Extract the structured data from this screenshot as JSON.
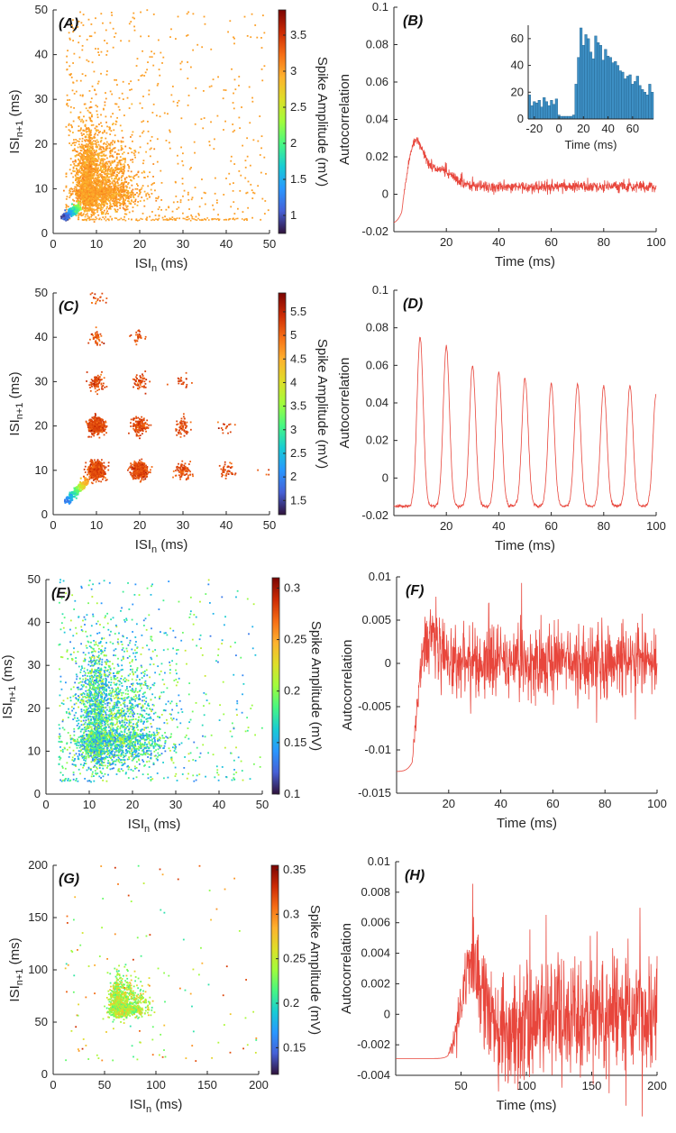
{
  "chart_data": [
    {
      "panel": "(A)",
      "type": "scatter",
      "xlabel_main": "ISI",
      "xlabel_sub": "n",
      "xlabel_unit": " (ms)",
      "ylabel_main": "ISI",
      "ylabel_sub": "n+1",
      "ylabel_unit": " (ms)",
      "xlim": [
        0,
        50
      ],
      "ylim": [
        0,
        50
      ],
      "xticks": [
        0,
        10,
        20,
        30,
        40,
        50
      ],
      "yticks": [
        0,
        10,
        20,
        30,
        40,
        50
      ],
      "colorbar": {
        "label": "Spike Amplitude (mV)",
        "range": [
          0.75,
          3.85
        ],
        "ticks": [
          "1",
          "1.5",
          "2",
          "2.5",
          "3",
          "3.5"
        ],
        "tick_values": [
          1,
          1.5,
          2,
          2.5,
          3,
          3.5
        ]
      },
      "cluster": {
        "center": [
          9,
          10
        ],
        "spread": [
          4,
          5
        ],
        "count": 2800,
        "amplitude": 3.0
      },
      "sparse": {
        "count": 600,
        "amplitude": 3.0
      },
      "low_amp_tail": {
        "start": [
          2.5,
          3.5
        ],
        "end": [
          6,
          6
        ],
        "amplitude_range": [
          0.9,
          2.3
        ]
      },
      "bands": [
        {
          "y": 3.2,
          "x_range": [
            8,
            45
          ]
        }
      ]
    },
    {
      "panel": "(B)",
      "type": "line",
      "xlabel": "Time (ms)",
      "ylabel": "Autocorrelation",
      "xlim": [
        0,
        100
      ],
      "ylim": [
        -0.02,
        0.1
      ],
      "xticks": [
        20,
        40,
        60,
        80,
        100
      ],
      "yticks": [
        -0.02,
        0,
        0.02,
        0.04,
        0.06,
        0.08,
        0.1
      ],
      "ytick_labels": [
        "-0.02",
        "0",
        "0.02",
        "0.04",
        "0.06",
        "0.08",
        "0.1"
      ],
      "series": {
        "baseline": -0.016,
        "rise_at": 3,
        "peaks": [
          [
            8,
            0.028
          ],
          [
            17,
            0.013
          ]
        ],
        "tail_level": 0.004,
        "noise": 0.0015
      },
      "inset": {
        "type": "histogram",
        "xlabel": "Time (ms)",
        "xlim": [
          -25,
          77
        ],
        "ylim": [
          0,
          70
        ],
        "xticks": [
          -20,
          0,
          20,
          40,
          60
        ],
        "yticks": [
          0,
          20,
          40,
          60
        ],
        "bins_start": -25,
        "bin_width": 2,
        "counts": [
          18,
          10,
          13,
          12,
          14,
          9,
          16,
          13,
          10,
          14,
          11,
          15,
          3,
          2,
          2,
          2,
          2,
          2,
          3,
          26,
          46,
          68,
          55,
          63,
          60,
          50,
          45,
          62,
          57,
          55,
          44,
          52,
          47,
          46,
          42,
          43,
          40,
          36,
          35,
          30,
          32,
          33,
          26,
          28,
          32,
          25,
          22,
          20,
          18,
          26,
          20
        ]
      }
    },
    {
      "panel": "(C)",
      "type": "scatter",
      "xlabel_main": "ISI",
      "xlabel_sub": "n",
      "xlabel_unit": " (ms)",
      "ylabel_main": "ISI",
      "ylabel_sub": "n+1",
      "ylabel_unit": " (ms)",
      "xlim": [
        0,
        50
      ],
      "ylim": [
        0,
        50
      ],
      "xticks": [
        0,
        10,
        20,
        30,
        40,
        50
      ],
      "yticks": [
        0,
        10,
        20,
        30,
        40,
        50
      ],
      "colorbar": {
        "label": "Spike Amplitude (mV)",
        "range": [
          1.2,
          5.9
        ],
        "ticks": [
          "1.5",
          "2",
          "2.5",
          "3",
          "3.5",
          "4",
          "4.5",
          "5",
          "5.5"
        ],
        "tick_values": [
          1.5,
          2,
          2.5,
          3,
          3.5,
          4,
          4.5,
          5,
          5.5
        ]
      },
      "clusters": [
        [
          10,
          10,
          700
        ],
        [
          10,
          20,
          420
        ],
        [
          20,
          10,
          420
        ],
        [
          20,
          20,
          160
        ],
        [
          10,
          30,
          90
        ],
        [
          30,
          10,
          90
        ],
        [
          20,
          30,
          60
        ],
        [
          30,
          20,
          60
        ],
        [
          10,
          40,
          45
        ],
        [
          40,
          10,
          45
        ],
        [
          10,
          49,
          25
        ],
        [
          20,
          40,
          25
        ],
        [
          30,
          30,
          20
        ],
        [
          40,
          20,
          15
        ],
        [
          50,
          10,
          8
        ]
      ],
      "cluster_amplitude": 5.2,
      "low_amp_tail": {
        "start": [
          3,
          3
        ],
        "end": [
          8,
          8
        ],
        "amplitude_range": [
          1.8,
          4.8
        ]
      }
    },
    {
      "panel": "(D)",
      "type": "line",
      "xlabel": "Time (ms)",
      "ylabel": "Autocorrelation",
      "xlim": [
        0,
        100
      ],
      "ylim": [
        -0.02,
        0.1
      ],
      "xticks": [
        20,
        40,
        60,
        80,
        100
      ],
      "yticks": [
        -0.02,
        0,
        0.02,
        0.04,
        0.06,
        0.08,
        0.1
      ],
      "ytick_labels": [
        "-0.02",
        "0",
        "0.02",
        "0.04",
        "0.06",
        "0.08",
        "0.1"
      ],
      "series": {
        "baseline": -0.015,
        "peaks": [
          [
            10,
            0.075
          ],
          [
            20,
            0.07
          ],
          [
            30,
            0.06
          ],
          [
            40,
            0.056
          ],
          [
            50,
            0.053
          ],
          [
            60,
            0.05
          ],
          [
            70,
            0.05
          ],
          [
            80,
            0.049
          ],
          [
            90,
            0.049
          ],
          [
            100,
            0.045
          ]
        ],
        "peak_width": 1.7
      }
    },
    {
      "panel": "(E)",
      "type": "scatter",
      "xlabel_main": "ISI",
      "xlabel_sub": "n",
      "xlabel_unit": " (ms)",
      "ylabel_main": "ISI",
      "ylabel_sub": "n+1",
      "ylabel_unit": " (ms)",
      "xlim": [
        0,
        50
      ],
      "ylim": [
        0,
        50
      ],
      "xticks": [
        0,
        10,
        20,
        30,
        40,
        50
      ],
      "yticks": [
        0,
        10,
        20,
        30,
        40,
        50
      ],
      "colorbar": {
        "label": "Spike Amplitude (mV)",
        "range": [
          0.1,
          0.31
        ],
        "ticks": [
          "0.1",
          "0.15",
          "0.2",
          "0.25",
          "0.3"
        ],
        "tick_values": [
          0.1,
          0.15,
          0.2,
          0.25,
          0.3
        ]
      },
      "cluster": {
        "center": [
          13,
          14
        ],
        "spread": [
          6,
          8
        ],
        "count": 3000,
        "amplitude_range": [
          0.13,
          0.22
        ]
      },
      "sparse": {
        "count": 500,
        "amplitude_range": [
          0.13,
          0.22
        ]
      }
    },
    {
      "panel": "(F)",
      "type": "line",
      "xlabel": "Time (ms)",
      "ylabel": "Autocorrelation",
      "xlim": [
        0,
        100
      ],
      "ylim": [
        -0.015,
        0.01
      ],
      "xticks": [
        20,
        40,
        60,
        80,
        100
      ],
      "yticks": [
        -0.015,
        -0.01,
        -0.005,
        0,
        0.005,
        0.01
      ],
      "ytick_labels": [
        "-0.015",
        "-0.01",
        "-0.005",
        "0",
        "0.005",
        "0.01"
      ],
      "series": {
        "baseline": -0.0125,
        "rise_at": 6,
        "peaks": [
          [
            12,
            0.0055
          ]
        ],
        "tail_level": 0.0,
        "noise": 0.0022
      }
    },
    {
      "panel": "(G)",
      "type": "scatter",
      "xlabel_main": "ISI",
      "xlabel_sub": "n",
      "xlabel_unit": " (ms)",
      "ylabel_main": "ISI",
      "ylabel_sub": "n+1",
      "ylabel_unit": " (ms)",
      "xlim": [
        0,
        200
      ],
      "ylim": [
        0,
        200
      ],
      "xticks": [
        0,
        50,
        100,
        150,
        200
      ],
      "yticks": [
        0,
        50,
        100,
        150,
        200
      ],
      "colorbar": {
        "label": "Spike Amplitude (mV)",
        "range": [
          0.12,
          0.355
        ],
        "ticks": [
          "0.15",
          "0.2",
          "0.25",
          "0.3",
          "0.35"
        ],
        "tick_values": [
          0.15,
          0.2,
          0.25,
          0.3,
          0.35
        ]
      },
      "cluster": {
        "center": [
          65,
          65
        ],
        "spread": [
          10,
          10
        ],
        "count": 1300,
        "amplitude_range": [
          0.21,
          0.28
        ]
      },
      "sparse": {
        "count": 120,
        "amplitude_range": [
          0.2,
          0.33
        ]
      }
    },
    {
      "panel": "(H)",
      "type": "line",
      "xlabel": "Time (ms)",
      "ylabel": "Autocorrelation",
      "xlim": [
        0,
        200
      ],
      "ylim": [
        -0.004,
        0.01
      ],
      "xticks": [
        50,
        100,
        150,
        200
      ],
      "yticks": [
        -0.004,
        -0.002,
        0,
        0.002,
        0.004,
        0.006,
        0.008,
        0.01
      ],
      "ytick_labels": [
        "-0.004",
        "-0.002",
        "0",
        "0.002",
        "0.004",
        "0.006",
        "0.008",
        "0.01"
      ],
      "series": {
        "baseline": -0.0029,
        "rise_at": 40,
        "peaks": [
          [
            58,
            0.0045
          ]
        ],
        "dip": [
          90,
          -0.001
        ],
        "tail_level": 0.0,
        "noise": 0.0022
      }
    }
  ]
}
